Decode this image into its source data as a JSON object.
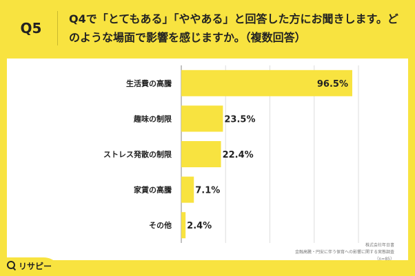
{
  "header": {
    "question_number": "Q5",
    "question_text": "Q4で「とてもある」「ややある」と回答した方にお聞きします。どのような場面で影響を感じますか。（複数回答）"
  },
  "chart_data": {
    "type": "bar",
    "orientation": "horizontal",
    "categories": [
      "生活費の高騰",
      "趣味の制限",
      "ストレス発散の制限",
      "家賃の高騰",
      "その他"
    ],
    "values": [
      96.5,
      23.5,
      22.4,
      7.1,
      2.4
    ],
    "value_labels": [
      "96.5%",
      "23.5%",
      "22.4%",
      "7.1%",
      "2.4%"
    ],
    "xlim": [
      0,
      100
    ],
    "grid": true,
    "bar_color": "#f8e340",
    "title": "",
    "xlabel": "",
    "ylabel": ""
  },
  "source": {
    "line1": "株式会社年日書",
    "line2": "金融高騰・円安に伴う保育への影響に関する実態調査",
    "line3": "（n=85）"
  },
  "logo": {
    "text": "リサピー",
    "icon": "search-icon"
  },
  "colors": {
    "background": "#f8e340",
    "panel": "#ffffff",
    "bar": "#f8e340",
    "grid": "#dddddd"
  }
}
